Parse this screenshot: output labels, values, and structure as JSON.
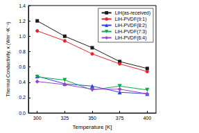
{
  "chart_data": {
    "type": "line",
    "x_label": "Temperature [K]",
    "y_label": "Thermal Conductivity, κ (Wm⁻¹K⁻¹)",
    "x": [
      300,
      325,
      350,
      375,
      400
    ],
    "series": [
      {
        "name": "LiH(as-received)",
        "color": "#1a1a1a",
        "marker": "square",
        "values": [
          1.2,
          1.0,
          0.85,
          0.67,
          0.58
        ]
      },
      {
        "name": "LiH-PVDF(9:1)",
        "color": "#e3262b",
        "marker": "circle",
        "values": [
          1.07,
          0.94,
          0.77,
          0.64,
          0.54
        ]
      },
      {
        "name": "LiH-PVDF(8:2)",
        "color": "#2a46e0",
        "marker": "triangle-up",
        "values": [
          0.48,
          0.38,
          0.35,
          0.27,
          0.25
        ]
      },
      {
        "name": "LiH-PVDF(7:3)",
        "color": "#10a84a",
        "marker": "triangle-down",
        "values": [
          0.47,
          0.43,
          0.3,
          0.35,
          0.3
        ]
      },
      {
        "name": "LiH-PVDF(6:4)",
        "color": "#9b3fd6",
        "marker": "diamond",
        "values": [
          0.41,
          0.37,
          0.31,
          0.31,
          0.25
        ]
      }
    ],
    "xlim": [
      292,
      408
    ],
    "xticks": [
      300,
      325,
      350,
      375,
      400
    ],
    "ylim": [
      0,
      1.4
    ],
    "yticks": [
      {
        "value": 0,
        "label": "0.0"
      },
      0.2,
      0.4,
      0.6,
      0.8,
      {
        "value": 1,
        "label": "1.0"
      },
      1.2,
      1.4
    ],
    "grid": false,
    "legend": "upper right"
  }
}
